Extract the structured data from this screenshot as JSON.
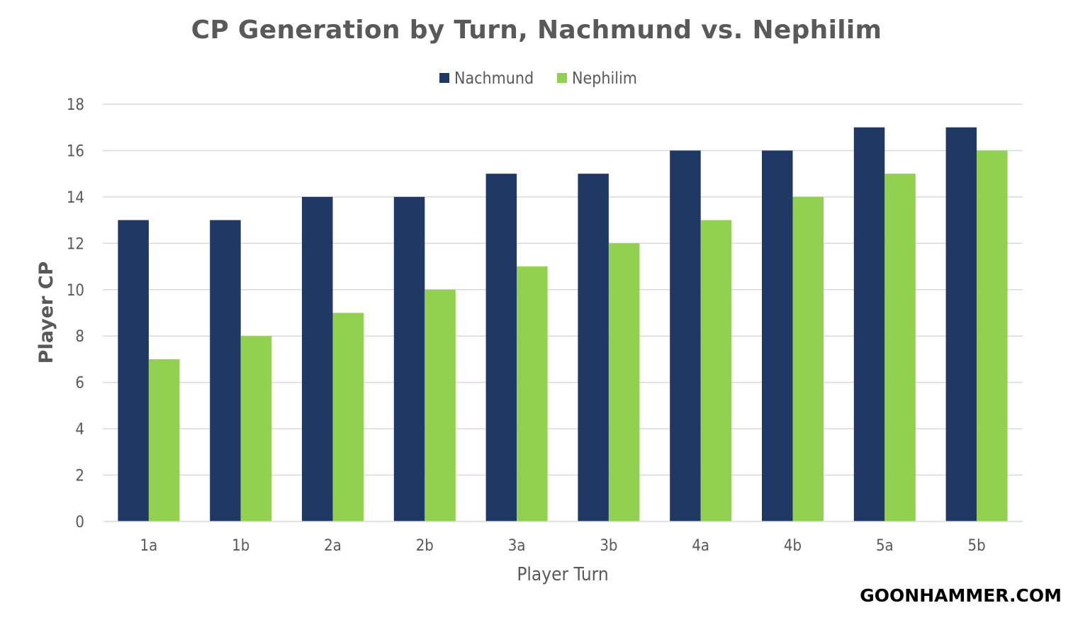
{
  "chart_data": {
    "type": "bar",
    "title": "CP Generation by Turn, Nachmund vs. Nephilim",
    "xlabel": "Player Turn",
    "ylabel": "Player CP",
    "categories": [
      "1a",
      "1b",
      "2a",
      "2b",
      "3a",
      "3b",
      "4a",
      "4b",
      "5a",
      "5b"
    ],
    "series": [
      {
        "name": "Nachmund",
        "color": "#203864",
        "values": [
          13,
          13,
          14,
          14,
          15,
          15,
          16,
          16,
          17,
          17
        ]
      },
      {
        "name": "Nephilim",
        "color": "#92D050",
        "values": [
          7,
          8,
          9,
          10,
          11,
          12,
          13,
          14,
          15,
          16
        ]
      }
    ],
    "ylim": [
      0,
      18
    ],
    "yticks": [
      "0",
      "2",
      "4",
      "6",
      "8",
      "10",
      "12",
      "14",
      "16",
      "18"
    ],
    "grid": true,
    "legend": "top-center"
  },
  "watermark": "GOONHAMMER.COM"
}
